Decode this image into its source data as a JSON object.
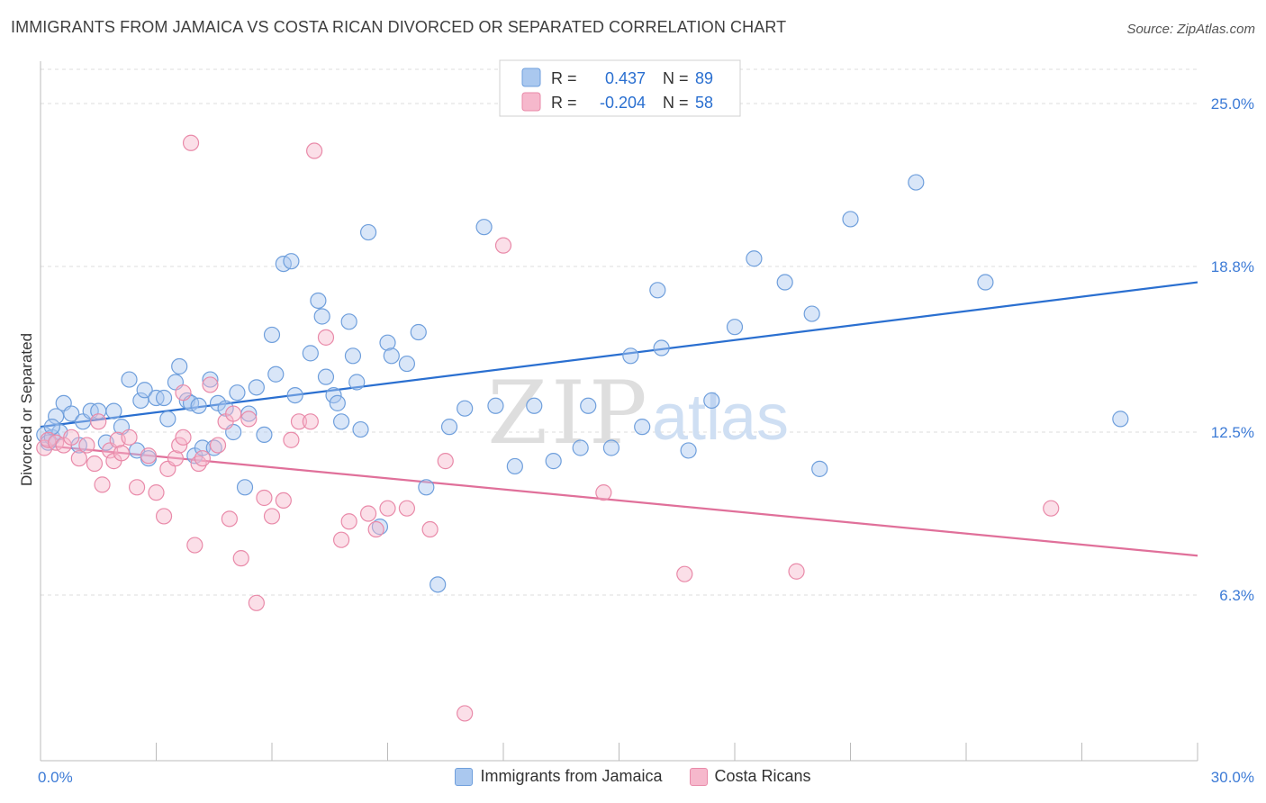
{
  "title": "IMMIGRANTS FROM JAMAICA VS COSTA RICAN DIVORCED OR SEPARATED CORRELATION CHART",
  "source": "Source: ZipAtlas.com",
  "watermark": {
    "zip": "ZIP",
    "atlas": "atlas"
  },
  "colors": {
    "blue_fill": "#aac8ef",
    "blue_stroke": "#6f9fdc",
    "blue_line": "#2a6fd0",
    "pink_fill": "#f6b8cc",
    "pink_stroke": "#e98aa9",
    "pink_line": "#e0709a",
    "axis_text": "#3d7bd6",
    "grid": "#dcdcdc"
  },
  "legend_top": {
    "rows": [
      {
        "r_label": "R =",
        "r_value": "0.437",
        "n_label": "N =",
        "n_value": "89",
        "series": "blue"
      },
      {
        "r_label": "R =",
        "r_value": "-0.204",
        "n_label": "N =",
        "n_value": "58",
        "series": "pink"
      }
    ]
  },
  "chart_data": {
    "type": "scatter",
    "title": "IMMIGRANTS FROM JAMAICA VS COSTA RICAN DIVORCED OR SEPARATED CORRELATION CHART",
    "xlabel": "",
    "ylabel": "Divorced or Separated",
    "xlim": [
      0,
      30
    ],
    "ylim": [
      0,
      26.3
    ],
    "x_tick_labels": [
      "0.0%",
      "30.0%"
    ],
    "y_ticks": [
      6.3,
      12.5,
      18.8,
      25.0
    ],
    "y_tick_labels": [
      "6.3%",
      "12.5%",
      "18.8%",
      "25.0%"
    ],
    "grid": true,
    "legend_position": "bottom",
    "series": [
      {
        "name": "Immigrants from Jamaica",
        "color": "blue",
        "trend": {
          "x": [
            0,
            30
          ],
          "y": [
            12.7,
            18.2
          ]
        },
        "points": [
          [
            0.1,
            12.4
          ],
          [
            0.2,
            12.1
          ],
          [
            0.3,
            12.3
          ],
          [
            0.4,
            13.1
          ],
          [
            0.5,
            12.5
          ],
          [
            0.6,
            13.6
          ],
          [
            0.8,
            13.2
          ],
          [
            1.0,
            12.0
          ],
          [
            1.1,
            12.9
          ],
          [
            1.3,
            13.3
          ],
          [
            1.5,
            13.3
          ],
          [
            1.9,
            13.3
          ],
          [
            2.1,
            12.7
          ],
          [
            2.3,
            14.5
          ],
          [
            2.5,
            11.8
          ],
          [
            2.6,
            13.7
          ],
          [
            2.7,
            14.1
          ],
          [
            3.0,
            13.8
          ],
          [
            3.2,
            13.8
          ],
          [
            3.3,
            13.0
          ],
          [
            3.5,
            14.4
          ],
          [
            3.6,
            15.0
          ],
          [
            3.8,
            13.7
          ],
          [
            3.9,
            13.6
          ],
          [
            4.0,
            11.6
          ],
          [
            4.1,
            13.5
          ],
          [
            4.2,
            11.9
          ],
          [
            4.4,
            14.5
          ],
          [
            4.5,
            11.9
          ],
          [
            4.6,
            13.6
          ],
          [
            4.8,
            13.4
          ],
          [
            5.0,
            12.5
          ],
          [
            5.1,
            14.0
          ],
          [
            5.3,
            10.4
          ],
          [
            5.4,
            13.2
          ],
          [
            5.6,
            14.2
          ],
          [
            5.8,
            12.4
          ],
          [
            6.0,
            16.2
          ],
          [
            6.1,
            14.7
          ],
          [
            6.3,
            18.9
          ],
          [
            6.5,
            19.0
          ],
          [
            6.6,
            13.9
          ],
          [
            7.0,
            15.5
          ],
          [
            7.2,
            17.5
          ],
          [
            7.3,
            16.9
          ],
          [
            7.4,
            14.6
          ],
          [
            7.6,
            13.9
          ],
          [
            7.7,
            13.6
          ],
          [
            7.8,
            12.9
          ],
          [
            8.0,
            16.7
          ],
          [
            8.1,
            15.4
          ],
          [
            8.2,
            14.4
          ],
          [
            8.3,
            12.6
          ],
          [
            8.5,
            20.1
          ],
          [
            8.8,
            8.9
          ],
          [
            9.0,
            15.9
          ],
          [
            9.1,
            15.4
          ],
          [
            9.5,
            15.1
          ],
          [
            9.8,
            16.3
          ],
          [
            10.0,
            10.4
          ],
          [
            10.3,
            6.7
          ],
          [
            10.6,
            12.7
          ],
          [
            11.0,
            13.4
          ],
          [
            11.5,
            20.3
          ],
          [
            11.8,
            13.5
          ],
          [
            12.3,
            11.2
          ],
          [
            12.8,
            13.5
          ],
          [
            13.3,
            11.4
          ],
          [
            14.0,
            11.9
          ],
          [
            14.2,
            13.5
          ],
          [
            14.8,
            11.9
          ],
          [
            15.3,
            15.4
          ],
          [
            15.6,
            12.7
          ],
          [
            16.0,
            17.9
          ],
          [
            16.1,
            15.7
          ],
          [
            16.8,
            11.8
          ],
          [
            17.4,
            13.7
          ],
          [
            18.0,
            16.5
          ],
          [
            18.5,
            19.1
          ],
          [
            19.3,
            18.2
          ],
          [
            20.0,
            17.0
          ],
          [
            20.2,
            11.1
          ],
          [
            21.0,
            20.6
          ],
          [
            22.7,
            22.0
          ],
          [
            24.5,
            18.2
          ],
          [
            28.0,
            13.0
          ],
          [
            0.3,
            12.7
          ],
          [
            2.8,
            11.5
          ],
          [
            1.7,
            12.1
          ]
        ]
      },
      {
        "name": "Costa Ricans",
        "color": "pink",
        "trend": {
          "x": [
            0,
            30
          ],
          "y": [
            12.0,
            7.8
          ]
        },
        "points": [
          [
            0.1,
            11.9
          ],
          [
            0.2,
            12.2
          ],
          [
            0.4,
            12.1
          ],
          [
            0.6,
            12.0
          ],
          [
            0.8,
            12.3
          ],
          [
            1.0,
            11.5
          ],
          [
            1.2,
            12.0
          ],
          [
            1.4,
            11.3
          ],
          [
            1.6,
            10.5
          ],
          [
            1.8,
            11.8
          ],
          [
            1.9,
            11.4
          ],
          [
            2.0,
            12.2
          ],
          [
            2.1,
            11.7
          ],
          [
            2.3,
            12.3
          ],
          [
            2.5,
            10.4
          ],
          [
            2.8,
            11.6
          ],
          [
            3.0,
            10.2
          ],
          [
            3.2,
            9.3
          ],
          [
            3.3,
            11.1
          ],
          [
            3.5,
            11.5
          ],
          [
            3.6,
            12.0
          ],
          [
            3.7,
            12.3
          ],
          [
            3.9,
            23.5
          ],
          [
            4.0,
            8.2
          ],
          [
            4.1,
            11.3
          ],
          [
            4.2,
            11.5
          ],
          [
            4.4,
            14.3
          ],
          [
            4.6,
            12.0
          ],
          [
            4.9,
            9.2
          ],
          [
            4.8,
            12.9
          ],
          [
            5.0,
            13.2
          ],
          [
            5.2,
            7.7
          ],
          [
            5.4,
            13.0
          ],
          [
            5.6,
            6.0
          ],
          [
            5.8,
            10.0
          ],
          [
            6.0,
            9.3
          ],
          [
            6.3,
            9.9
          ],
          [
            6.5,
            12.2
          ],
          [
            6.7,
            12.9
          ],
          [
            7.0,
            12.9
          ],
          [
            7.1,
            23.2
          ],
          [
            7.4,
            16.1
          ],
          [
            7.8,
            8.4
          ],
          [
            8.0,
            9.1
          ],
          [
            8.5,
            9.4
          ],
          [
            8.7,
            8.8
          ],
          [
            9.0,
            9.6
          ],
          [
            9.5,
            9.6
          ],
          [
            10.1,
            8.8
          ],
          [
            10.5,
            11.4
          ],
          [
            11.0,
            1.8
          ],
          [
            12.0,
            19.6
          ],
          [
            14.6,
            10.2
          ],
          [
            16.7,
            7.1
          ],
          [
            19.6,
            7.2
          ],
          [
            26.2,
            9.6
          ],
          [
            3.7,
            14.0
          ],
          [
            1.5,
            12.9
          ]
        ]
      }
    ]
  }
}
